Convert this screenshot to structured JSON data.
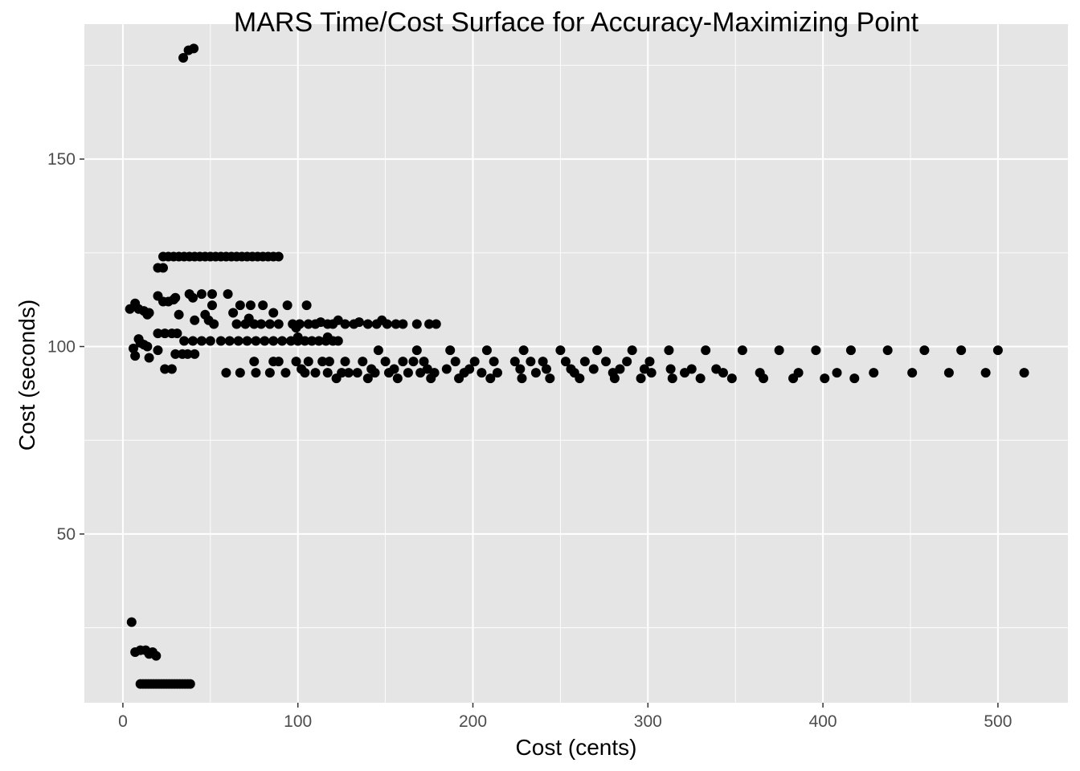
{
  "chart_data": {
    "type": "scatter",
    "title": "MARS Time/Cost Surface for Accuracy-Maximizing Point",
    "xlabel": "Cost (cents)",
    "ylabel": "Cost (seconds)",
    "xlim": [
      -22,
      540
    ],
    "ylim": [
      5,
      186
    ],
    "x_ticks": [
      0,
      100,
      200,
      300,
      400,
      500
    ],
    "y_ticks": [
      50,
      100,
      150
    ],
    "grid": true,
    "legend": "none",
    "colors": {
      "panel": "#e5e5e5",
      "grid_major": "#ffffff",
      "point": "#000000",
      "tick_text": "#4d4d4d"
    },
    "points": [
      [
        34.5,
        177
      ],
      [
        37.5,
        179
      ],
      [
        40.5,
        179.5
      ],
      [
        23,
        124
      ],
      [
        26,
        124
      ],
      [
        29,
        124
      ],
      [
        32,
        124
      ],
      [
        35,
        124
      ],
      [
        38,
        124
      ],
      [
        41,
        124
      ],
      [
        44,
        124
      ],
      [
        47,
        124
      ],
      [
        50,
        124
      ],
      [
        53,
        124
      ],
      [
        56,
        124
      ],
      [
        59,
        124
      ],
      [
        62,
        124
      ],
      [
        65,
        124
      ],
      [
        68,
        124
      ],
      [
        71,
        124
      ],
      [
        74,
        124
      ],
      [
        77,
        124
      ],
      [
        80,
        124
      ],
      [
        83,
        124
      ],
      [
        86,
        124
      ],
      [
        89,
        124
      ],
      [
        20,
        121
      ],
      [
        23,
        121
      ],
      [
        4,
        110
      ],
      [
        7,
        111.5
      ],
      [
        9,
        110
      ],
      [
        12,
        109.5
      ],
      [
        14,
        108.5
      ],
      [
        15,
        109
      ],
      [
        20,
        113.5
      ],
      [
        23,
        112
      ],
      [
        26,
        112
      ],
      [
        29,
        112.5
      ],
      [
        30,
        113
      ],
      [
        32,
        108.5
      ],
      [
        38,
        114
      ],
      [
        40,
        113
      ],
      [
        41,
        107
      ],
      [
        45,
        114
      ],
      [
        47,
        108.5
      ],
      [
        49,
        107
      ],
      [
        51,
        114
      ],
      [
        51,
        111
      ],
      [
        52,
        106
      ],
      [
        60,
        114
      ],
      [
        63,
        109
      ],
      [
        65,
        106
      ],
      [
        67,
        111
      ],
      [
        70,
        106
      ],
      [
        72,
        107.5
      ],
      [
        73,
        111
      ],
      [
        75,
        106
      ],
      [
        79,
        106
      ],
      [
        80,
        111
      ],
      [
        84,
        106
      ],
      [
        86,
        109
      ],
      [
        89,
        106
      ],
      [
        94,
        111
      ],
      [
        97,
        106
      ],
      [
        99,
        105
      ],
      [
        101,
        106
      ],
      [
        105,
        111
      ],
      [
        106,
        106
      ],
      [
        110,
        106
      ],
      [
        113,
        106.5
      ],
      [
        117,
        106
      ],
      [
        120,
        106
      ],
      [
        123,
        107
      ],
      [
        127,
        106
      ],
      [
        132,
        106
      ],
      [
        135,
        106.5
      ],
      [
        140,
        106
      ],
      [
        145,
        106
      ],
      [
        148,
        107
      ],
      [
        151,
        106
      ],
      [
        156,
        106
      ],
      [
        160,
        106
      ],
      [
        168,
        106
      ],
      [
        175,
        106
      ],
      [
        179,
        106
      ],
      [
        20,
        103.5
      ],
      [
        24,
        103.5
      ],
      [
        28,
        103.5
      ],
      [
        31,
        103.5
      ],
      [
        35,
        101.5
      ],
      [
        40,
        101.5
      ],
      [
        45,
        101.5
      ],
      [
        50,
        101.5
      ],
      [
        56,
        101.5
      ],
      [
        61,
        101.5
      ],
      [
        66,
        101.5
      ],
      [
        71,
        101.5
      ],
      [
        76,
        101.5
      ],
      [
        81,
        101.5
      ],
      [
        86,
        101.5
      ],
      [
        91,
        101.5
      ],
      [
        96,
        101.5
      ],
      [
        100,
        101.5
      ],
      [
        104,
        101.5
      ],
      [
        108,
        101.5
      ],
      [
        112,
        101.5
      ],
      [
        116,
        101.5
      ],
      [
        120,
        101.5
      ],
      [
        123,
        101.5
      ],
      [
        117,
        102.5
      ],
      [
        100,
        102.5
      ],
      [
        9,
        102
      ],
      [
        10,
        101
      ],
      [
        12,
        100.5
      ],
      [
        14,
        100
      ],
      [
        6,
        99.5
      ],
      [
        15,
        97
      ],
      [
        7,
        97.5
      ],
      [
        20,
        99
      ],
      [
        24,
        94
      ],
      [
        28,
        94
      ],
      [
        30,
        98
      ],
      [
        34,
        98
      ],
      [
        37,
        98
      ],
      [
        41,
        98
      ],
      [
        59,
        93
      ],
      [
        67,
        93
      ],
      [
        75,
        96
      ],
      [
        76,
        93
      ],
      [
        84,
        93
      ],
      [
        86,
        96
      ],
      [
        89,
        96
      ],
      [
        93,
        93
      ],
      [
        99,
        96
      ],
      [
        102,
        94
      ],
      [
        104,
        93
      ],
      [
        106,
        96
      ],
      [
        110,
        93
      ],
      [
        114,
        96
      ],
      [
        117,
        93
      ],
      [
        118,
        96
      ],
      [
        122,
        91.5
      ],
      [
        125,
        93
      ],
      [
        127,
        96
      ],
      [
        129,
        93
      ],
      [
        134,
        93
      ],
      [
        137,
        96
      ],
      [
        140,
        91.5
      ],
      [
        142,
        94
      ],
      [
        144,
        93
      ],
      [
        146,
        99
      ],
      [
        150,
        96
      ],
      [
        152,
        93
      ],
      [
        155,
        94
      ],
      [
        157,
        91.5
      ],
      [
        160,
        96
      ],
      [
        163,
        93
      ],
      [
        166,
        96
      ],
      [
        168,
        99
      ],
      [
        170,
        93
      ],
      [
        172,
        96
      ],
      [
        174,
        94
      ],
      [
        176,
        91.5
      ],
      [
        178,
        93
      ],
      [
        185,
        94
      ],
      [
        187,
        99
      ],
      [
        190,
        96
      ],
      [
        192,
        91.5
      ],
      [
        195,
        93
      ],
      [
        198,
        94
      ],
      [
        201,
        96
      ],
      [
        205,
        93
      ],
      [
        208,
        99
      ],
      [
        210,
        91.5
      ],
      [
        212,
        96
      ],
      [
        214,
        93
      ],
      [
        224,
        96
      ],
      [
        227,
        94
      ],
      [
        228,
        91.5
      ],
      [
        229,
        99
      ],
      [
        233,
        96
      ],
      [
        236,
        93
      ],
      [
        240,
        96
      ],
      [
        242,
        94
      ],
      [
        244,
        91.5
      ],
      [
        250,
        99
      ],
      [
        253,
        96
      ],
      [
        256,
        94
      ],
      [
        258,
        93
      ],
      [
        261,
        91.5
      ],
      [
        264,
        96
      ],
      [
        269,
        94
      ],
      [
        271,
        99
      ],
      [
        276,
        96
      ],
      [
        280,
        93
      ],
      [
        281,
        91.5
      ],
      [
        284,
        94
      ],
      [
        288,
        96
      ],
      [
        291,
        99
      ],
      [
        296,
        91.5
      ],
      [
        298,
        94
      ],
      [
        301,
        96
      ],
      [
        302,
        93
      ],
      [
        312,
        99
      ],
      [
        313,
        94
      ],
      [
        314,
        91.5
      ],
      [
        321,
        93
      ],
      [
        325,
        94
      ],
      [
        330,
        91.5
      ],
      [
        333,
        99
      ],
      [
        339,
        94
      ],
      [
        343,
        93
      ],
      [
        348,
        91.5
      ],
      [
        354,
        99
      ],
      [
        364,
        93
      ],
      [
        366,
        91.5
      ],
      [
        375,
        99
      ],
      [
        383,
        91.5
      ],
      [
        386,
        93
      ],
      [
        396,
        99
      ],
      [
        401,
        91.5
      ],
      [
        408,
        93
      ],
      [
        416,
        99
      ],
      [
        418,
        91.5
      ],
      [
        429,
        93
      ],
      [
        437,
        99
      ],
      [
        451,
        93
      ],
      [
        458,
        99
      ],
      [
        472,
        93
      ],
      [
        479,
        99
      ],
      [
        493,
        93
      ],
      [
        500,
        99
      ],
      [
        515,
        93
      ],
      [
        5,
        26.5
      ],
      [
        7,
        18.5
      ],
      [
        10,
        19
      ],
      [
        13,
        19
      ],
      [
        15,
        18
      ],
      [
        17,
        18.5
      ],
      [
        19,
        17.5
      ],
      [
        10,
        10
      ],
      [
        11.5,
        10
      ],
      [
        13,
        10
      ],
      [
        14.5,
        10
      ],
      [
        16,
        10
      ],
      [
        17.5,
        10
      ],
      [
        19,
        10
      ],
      [
        20.5,
        10
      ],
      [
        22,
        10
      ],
      [
        23.5,
        10
      ],
      [
        25,
        10
      ],
      [
        26.5,
        10
      ],
      [
        28,
        10
      ],
      [
        29.5,
        10
      ],
      [
        31,
        10
      ],
      [
        32.5,
        10
      ],
      [
        34,
        10
      ],
      [
        35.5,
        10
      ],
      [
        37,
        10
      ],
      [
        38.5,
        10
      ]
    ]
  }
}
